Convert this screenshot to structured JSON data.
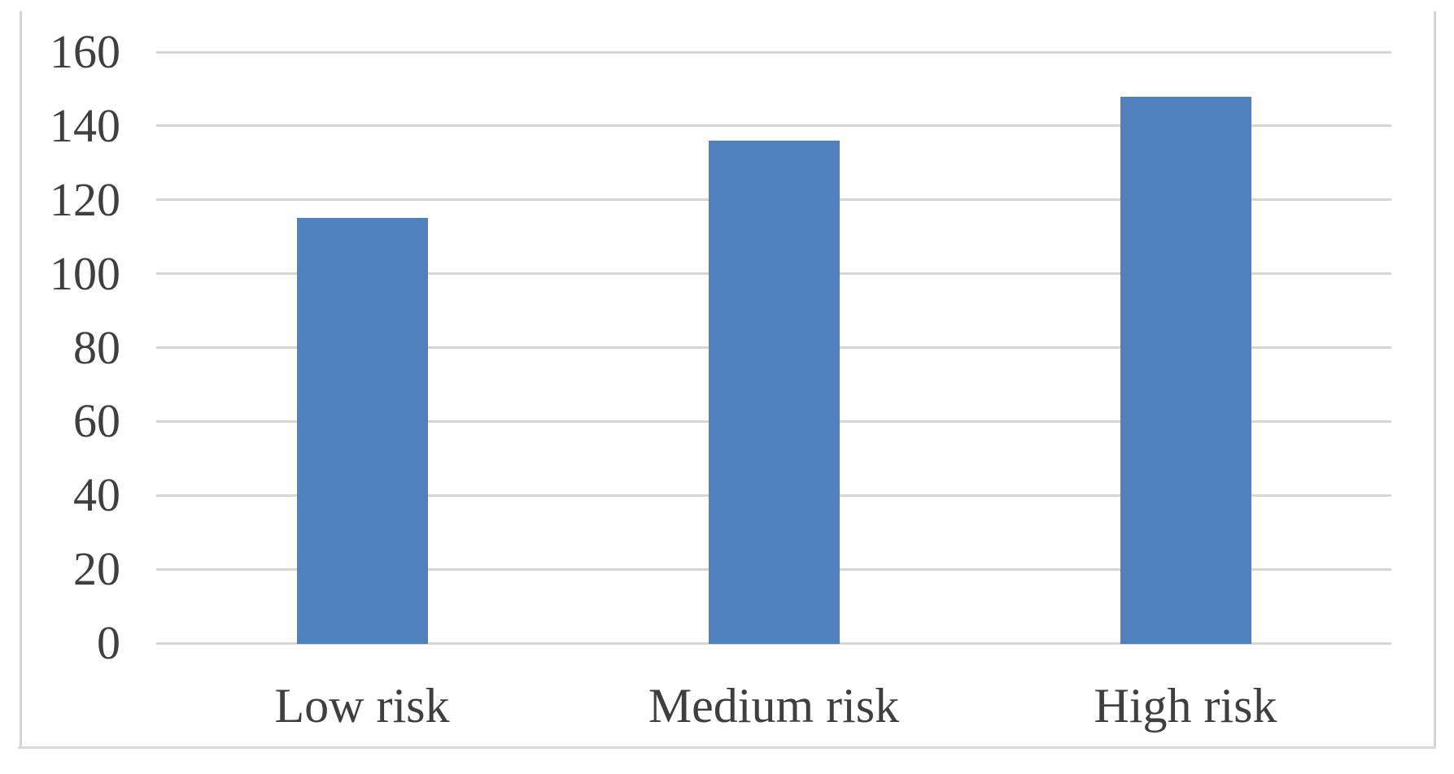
{
  "chart_data": {
    "type": "bar",
    "title": "",
    "xlabel": "",
    "ylabel": "",
    "categories": [
      "Low risk",
      "Medium risk",
      "High risk"
    ],
    "values": [
      115,
      136,
      148
    ],
    "ylim": [
      0,
      160
    ],
    "yticks": [
      160,
      140,
      120,
      100,
      80,
      60,
      40,
      20,
      0
    ],
    "grid": true,
    "legend": false,
    "colors": {
      "bar": "#4F81BD",
      "gridline": "#D6D6D6",
      "axis_text": "#3F3F3F",
      "chart_border": "#D4D4D4",
      "background": "#FFFFFF"
    }
  }
}
